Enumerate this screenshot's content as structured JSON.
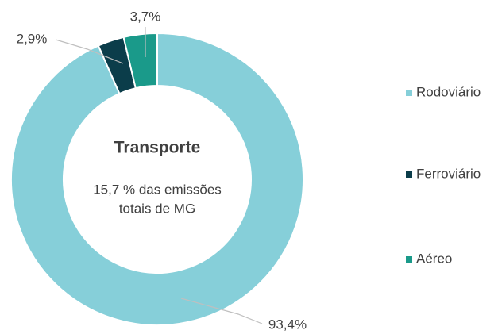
{
  "chart_data": {
    "type": "donut",
    "center_label": "Transporte",
    "center_text": [
      "15,7 % das emissões",
      "totais de MG"
    ],
    "categories": [
      "Rodoviário",
      "Ferroviário",
      "Aéreo"
    ],
    "values": [
      93.4,
      2.9,
      3.7
    ],
    "value_labels": [
      "93,4%",
      "2,9%",
      "3,7%"
    ],
    "colors": [
      "#86cfd9",
      "#0b3d4a",
      "#1a9a8a"
    ],
    "legend": "right"
  }
}
